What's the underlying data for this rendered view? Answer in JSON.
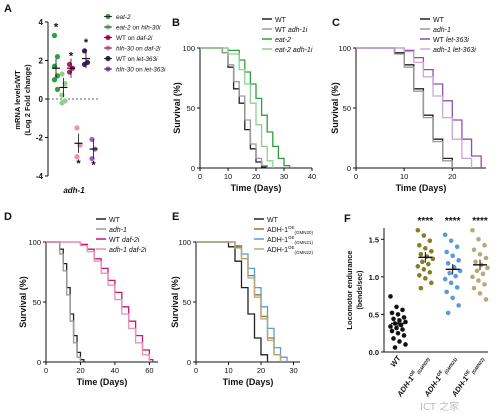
{
  "chart_data": [
    {
      "panel": "A",
      "type": "scatter",
      "ylabel": "mRNA levels/WT",
      "ylabel2": "(Log 2 Fold change)",
      "xlabel": "adh-1",
      "ylim": [
        -4,
        4
      ],
      "yticks": [
        "4",
        "2",
        "0",
        "-2",
        "-4"
      ],
      "legend": [
        {
          "label": "eat-2",
          "color": "#2e9e3e"
        },
        {
          "label": "eat-2 on hlh-30i",
          "color": "#8fd08f"
        },
        {
          "label": "WT on daf-2i",
          "color": "#c2186b"
        },
        {
          "label": "hlh-30 on daf-2i",
          "color": "#f08fb8"
        },
        {
          "label": "WT on let-363i",
          "color": "#4a1a6b"
        },
        {
          "label": "hlh-30 on let-363i",
          "color": "#a05bc8"
        }
      ],
      "series": [
        {
          "name": "eat-2",
          "color": "#2e9e3e",
          "mean": 1.6,
          "values": [
            3.3,
            2.2,
            1.7,
            1.2,
            1.0,
            0.5
          ],
          "star": true
        },
        {
          "name": "eat-2 on hlh-30i",
          "color": "#8fd08f",
          "mean": 0.6,
          "values": [
            1.3,
            0.8,
            0.2,
            -0.1,
            -0.2
          ],
          "star": false
        },
        {
          "name": "WT on daf-2i",
          "color": "#c2186b",
          "mean": 1.6,
          "values": [
            1.8,
            1.6,
            1.4
          ],
          "star": true
        },
        {
          "name": "hlh-30 on daf-2i",
          "color": "#f08fb8",
          "mean": -2.3,
          "values": [
            -1.5,
            -2.4,
            -3.0
          ],
          "star": true
        },
        {
          "name": "WT on let-363i",
          "color": "#4a1a6b",
          "mean": 2.1,
          "values": [
            2.5,
            1.9,
            1.8
          ],
          "star": true
        },
        {
          "name": "hlh-30 on let-363i",
          "color": "#a05bc8",
          "mean": -2.6,
          "values": [
            -2.1,
            -2.6,
            -3.1
          ],
          "star": true
        }
      ]
    },
    {
      "panel": "B",
      "type": "line",
      "xlabel": "Time (Days)",
      "ylabel": "Survival (%)",
      "xlim": [
        0,
        40
      ],
      "ylim": [
        0,
        100
      ],
      "xticks": [
        "0",
        "10",
        "20",
        "30",
        "40"
      ],
      "yticks": [
        "0",
        "50",
        "100"
      ],
      "series": [
        {
          "name": "WT",
          "color": "#222222",
          "x": [
            0,
            8,
            10,
            12,
            14,
            16,
            18,
            20,
            22,
            24
          ],
          "y": [
            100,
            96,
            84,
            66,
            54,
            32,
            16,
            5,
            1,
            0
          ]
        },
        {
          "name": "WT adh-1i",
          "color": "#9a9a9a",
          "x": [
            0,
            8,
            10,
            12,
            14,
            16,
            18,
            20,
            22,
            24
          ],
          "y": [
            100,
            96,
            86,
            72,
            60,
            40,
            20,
            8,
            2,
            0
          ]
        },
        {
          "name": "eat-2",
          "color": "#2e9e3e",
          "x": [
            0,
            10,
            14,
            16,
            18,
            20,
            22,
            24,
            26,
            28,
            30,
            32
          ],
          "y": [
            100,
            98,
            90,
            80,
            70,
            58,
            44,
            30,
            18,
            8,
            2,
            0
          ]
        },
        {
          "name": "eat-2 adh-1i",
          "color": "#8fd08f",
          "x": [
            0,
            10,
            14,
            16,
            18,
            20,
            22,
            24,
            26
          ],
          "y": [
            100,
            95,
            82,
            70,
            54,
            36,
            18,
            6,
            0
          ]
        }
      ]
    },
    {
      "panel": "C",
      "type": "line",
      "xlabel": "Time (Days)",
      "ylabel": "Survival (%)",
      "xlim": [
        0,
        27
      ],
      "ylim": [
        0,
        100
      ],
      "xticks": [
        "0",
        "10",
        "20"
      ],
      "yticks": [
        "0",
        "50",
        "100"
      ],
      "series": [
        {
          "name": "WT",
          "color": "#222222",
          "x": [
            0,
            8,
            10,
            12,
            14,
            16,
            18,
            20
          ],
          "y": [
            100,
            96,
            86,
            66,
            44,
            24,
            8,
            0
          ]
        },
        {
          "name": "adh-1",
          "color": "#9a9a9a",
          "x": [
            0,
            8,
            10,
            12,
            14,
            16,
            18,
            20
          ],
          "y": [
            100,
            95,
            84,
            64,
            42,
            22,
            6,
            0
          ]
        },
        {
          "name": "WT let-363i",
          "color": "#8e4fb0",
          "x": [
            0,
            10,
            12,
            14,
            16,
            18,
            20,
            22,
            24,
            26
          ],
          "y": [
            100,
            98,
            92,
            82,
            70,
            56,
            40,
            24,
            10,
            0
          ]
        },
        {
          "name": "adh-1 let-363i",
          "color": "#c8a8dc",
          "x": [
            0,
            10,
            12,
            14,
            16,
            18,
            20,
            22,
            24
          ],
          "y": [
            100,
            97,
            88,
            76,
            60,
            42,
            24,
            8,
            0
          ]
        }
      ]
    },
    {
      "panel": "D",
      "type": "line",
      "xlabel": "Time (Days)",
      "ylabel": "Survival (%)",
      "xlim": [
        0,
        65
      ],
      "ylim": [
        0,
        100
      ],
      "xticks": [
        "0",
        "20",
        "40",
        "60"
      ],
      "yticks": [
        "0",
        "50",
        "100"
      ],
      "series": [
        {
          "name": "WT",
          "color": "#222222",
          "x": [
            0,
            8,
            10,
            12,
            14,
            16,
            18,
            20,
            22
          ],
          "y": [
            100,
            94,
            82,
            62,
            40,
            22,
            8,
            2,
            0
          ]
        },
        {
          "name": "adh-1",
          "color": "#9a9a9a",
          "x": [
            0,
            8,
            10,
            12,
            14,
            16,
            18,
            20
          ],
          "y": [
            100,
            90,
            76,
            56,
            34,
            16,
            4,
            0
          ]
        },
        {
          "name": "WT daf-2i",
          "color": "#c2186b",
          "x": [
            0,
            20,
            24,
            28,
            32,
            36,
            40,
            44,
            48,
            52,
            56,
            60,
            62
          ],
          "y": [
            100,
            98,
            94,
            86,
            78,
            68,
            58,
            46,
            34,
            22,
            10,
            2,
            0
          ]
        },
        {
          "name": "adh-1 daf-2i",
          "color": "#f08fb8",
          "x": [
            0,
            20,
            24,
            28,
            32,
            36,
            40,
            44,
            48,
            52,
            56,
            60
          ],
          "y": [
            100,
            97,
            92,
            84,
            74,
            64,
            52,
            40,
            28,
            16,
            6,
            0
          ]
        }
      ]
    },
    {
      "panel": "E",
      "type": "line",
      "xlabel": "Time (Days)",
      "ylabel": "Survival (%)",
      "xlim": [
        0,
        32
      ],
      "ylim": [
        0,
        100
      ],
      "xticks": [
        "0",
        "10",
        "20",
        "30"
      ],
      "yticks": [
        "0",
        "50",
        "100"
      ],
      "series": [
        {
          "name": "WT",
          "color": "#222222",
          "x": [
            0,
            10,
            12,
            14,
            16,
            18,
            20,
            22
          ],
          "y": [
            100,
            96,
            84,
            62,
            40,
            20,
            6,
            0
          ]
        },
        {
          "name": "ADH-1",
          "sup": "OE",
          "sub": "(GMN20)",
          "color": "#8a7a2a",
          "x": [
            0,
            12,
            14,
            16,
            18,
            20,
            22,
            24,
            26
          ],
          "y": [
            100,
            96,
            86,
            72,
            56,
            38,
            20,
            6,
            0
          ]
        },
        {
          "name": "ADH-1",
          "sup": "OE",
          "sub": "(GMN21)",
          "color": "#5b9bd5",
          "x": [
            0,
            12,
            14,
            16,
            18,
            20,
            22,
            24,
            26,
            28
          ],
          "y": [
            100,
            97,
            90,
            78,
            62,
            46,
            28,
            12,
            4,
            0
          ]
        },
        {
          "name": "ADH-1",
          "sup": "OE",
          "sub": "(GMN22)",
          "color": "#b9a878",
          "x": [
            0,
            12,
            14,
            16,
            18,
            20,
            22,
            24,
            26
          ],
          "y": [
            100,
            95,
            86,
            70,
            54,
            36,
            18,
            6,
            0
          ]
        }
      ]
    },
    {
      "panel": "F",
      "type": "scatter",
      "ylabel": "Locomotor endurance",
      "ylabel2": "(bends/sec)",
      "ylim": [
        0,
        1.65
      ],
      "yticks": [
        "0.0",
        "0.5",
        "1.0",
        "1.5"
      ],
      "categories": [
        "WT",
        "ADH-1 OE (GMN20)",
        "ADH-1 OE (GMN21)",
        "ADH-1 OE (GMN22)"
      ],
      "cat_main": [
        "WT",
        "ADH-1",
        "ADH-1",
        "ADH-1"
      ],
      "cat_sup": [
        "",
        "OE",
        "OE",
        "OE"
      ],
      "cat_sub": [
        "",
        "(GMN20)",
        "(GMN21)",
        "(GMN22)"
      ],
      "series": [
        {
          "name": "WT",
          "color": "#111111",
          "mean": 0.38,
          "sig": "",
          "values": [
            0.74,
            0.6,
            0.56,
            0.52,
            0.5,
            0.46,
            0.44,
            0.42,
            0.4,
            0.38,
            0.36,
            0.34,
            0.32,
            0.3,
            0.28,
            0.25,
            0.22,
            0.18,
            0.14,
            0.1,
            0.06
          ]
        },
        {
          "name": "ADH-1 OE (GMN20)",
          "color": "#8a7a2a",
          "mean": 1.26,
          "sig": "****",
          "values": [
            1.62,
            1.55,
            1.48,
            1.42,
            1.38,
            1.34,
            1.3,
            1.27,
            1.24,
            1.2,
            1.17,
            1.14,
            1.1,
            1.06,
            1.02,
            0.98,
            0.92,
            0.85
          ]
        },
        {
          "name": "ADH-1 OE (GMN21)",
          "color": "#5b9bd5",
          "mean": 1.1,
          "sig": "****",
          "values": [
            1.56,
            1.48,
            1.4,
            1.33,
            1.28,
            1.22,
            1.18,
            1.13,
            1.08,
            1.05,
            1.01,
            0.97,
            0.92,
            0.86,
            0.8,
            0.72,
            0.62,
            0.52
          ]
        },
        {
          "name": "ADH-1 OE (GMN22)",
          "color": "#b9a878",
          "mean": 1.16,
          "sig": "****",
          "values": [
            1.62,
            1.5,
            1.42,
            1.36,
            1.3,
            1.25,
            1.2,
            1.16,
            1.12,
            1.08,
            1.04,
            1.0,
            0.95,
            0.9,
            0.85,
            0.78,
            0.7
          ]
        }
      ]
    }
  ],
  "watermark": "ICT 之家"
}
